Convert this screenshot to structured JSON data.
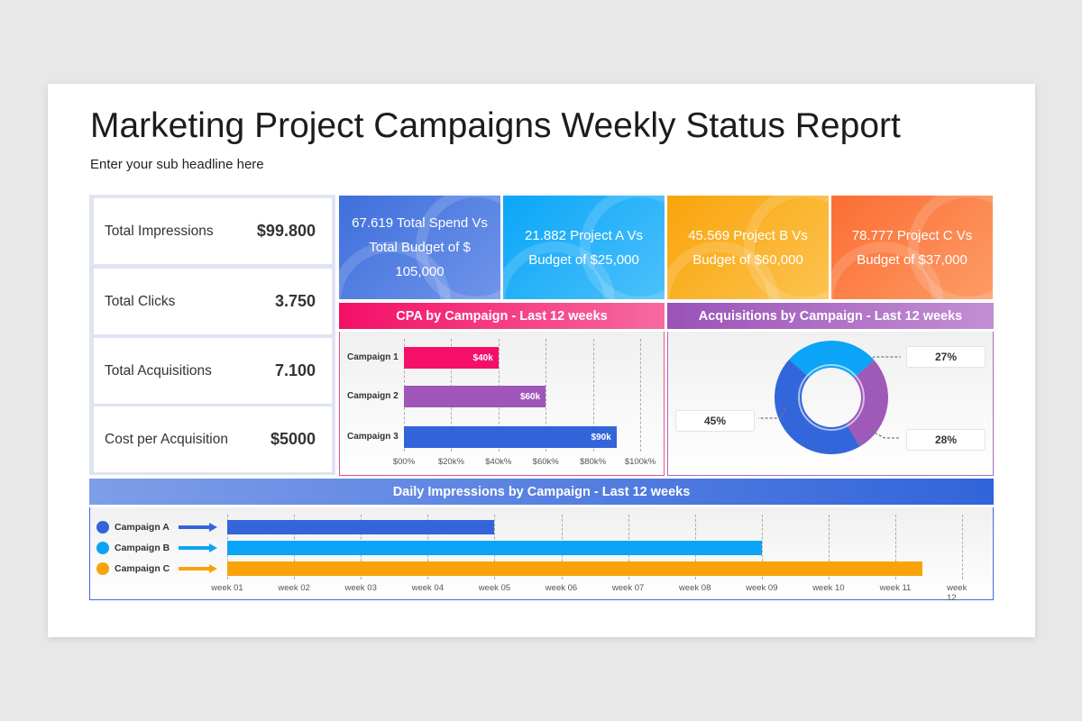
{
  "title": "Marketing Project Campaigns Weekly Status Report",
  "subtitle": "Enter your sub headline here",
  "metrics": [
    {
      "label": "Total Impressions",
      "value": "$99.800"
    },
    {
      "label": "Total Clicks",
      "value": "3.750"
    },
    {
      "label": "Total Acquisitions",
      "value": "7.100"
    },
    {
      "label": "Cost per Acquisition",
      "value": "$5000"
    }
  ],
  "kpis": [
    {
      "text": "67.619 Total Spend Vs Total Budget of $ 105,000",
      "color_from": "#3f6fdc",
      "color_to": "#6f95ea"
    },
    {
      "text": "21.882 Project A Vs Budget of $25,000",
      "color_from": "#0aa6f7",
      "color_to": "#4cc0fb"
    },
    {
      "text": "45.569 Project B Vs Budget of $60,000",
      "color_from": "#f9a50b",
      "color_to": "#fcc24f"
    },
    {
      "text": "78.777 Project C Vs Budget of $37,000",
      "color_from": "#fb6d33",
      "color_to": "#fd9c66"
    }
  ],
  "headers": {
    "cpa": "CPA by Campaign - Last 12 weeks",
    "acq": "Acquisitions by Campaign - Last 12 weeks",
    "daily": "Daily Impressions by Campaign - Last 12 weeks"
  },
  "chart_data": [
    {
      "type": "bar",
      "orientation": "horizontal",
      "title": "CPA by Campaign - Last 12 weeks",
      "categories": [
        "Campaign 1",
        "Campaign 2",
        "Campaign 3"
      ],
      "values": [
        40,
        60,
        90
      ],
      "data_labels": [
        "$40k",
        "$60k",
        "$90k"
      ],
      "colors": [
        "#f50f68",
        "#a055b9",
        "#3364da"
      ],
      "xticks": [
        "$00%",
        "$20k%",
        "$40k%",
        "$60k%",
        "$80k%",
        "$100k%"
      ],
      "xlim": [
        0,
        100
      ],
      "grid": true
    },
    {
      "type": "pie",
      "donut": true,
      "title": "Acquisitions by Campaign - Last 12 weeks",
      "slices": [
        {
          "value": 27,
          "label": "27%",
          "color": "#0ba4f6"
        },
        {
          "value": 28,
          "label": "28%",
          "color": "#9e59b9"
        },
        {
          "value": 45,
          "label": "45%",
          "color": "#3366da"
        }
      ]
    },
    {
      "type": "bar",
      "orientation": "horizontal",
      "subtype": "gantt",
      "title": "Daily Impressions by Campaign - Last 12 weeks",
      "series": [
        {
          "name": "Campaign A",
          "start_week": 1,
          "end_week": 5,
          "color": "#3364da"
        },
        {
          "name": "Campaign B",
          "start_week": 1,
          "end_week": 9,
          "color": "#0ba4f6"
        },
        {
          "name": "Campaign C",
          "start_week": 1,
          "end_week": 11.4,
          "color": "#f9a30b"
        }
      ],
      "xticks": [
        "week 01",
        "week 02",
        "week 03",
        "week 04",
        "week 05",
        "week 06",
        "week 07",
        "week 08",
        "week 09",
        "week 10",
        "week 11",
        "week 12"
      ],
      "grid": true
    }
  ]
}
